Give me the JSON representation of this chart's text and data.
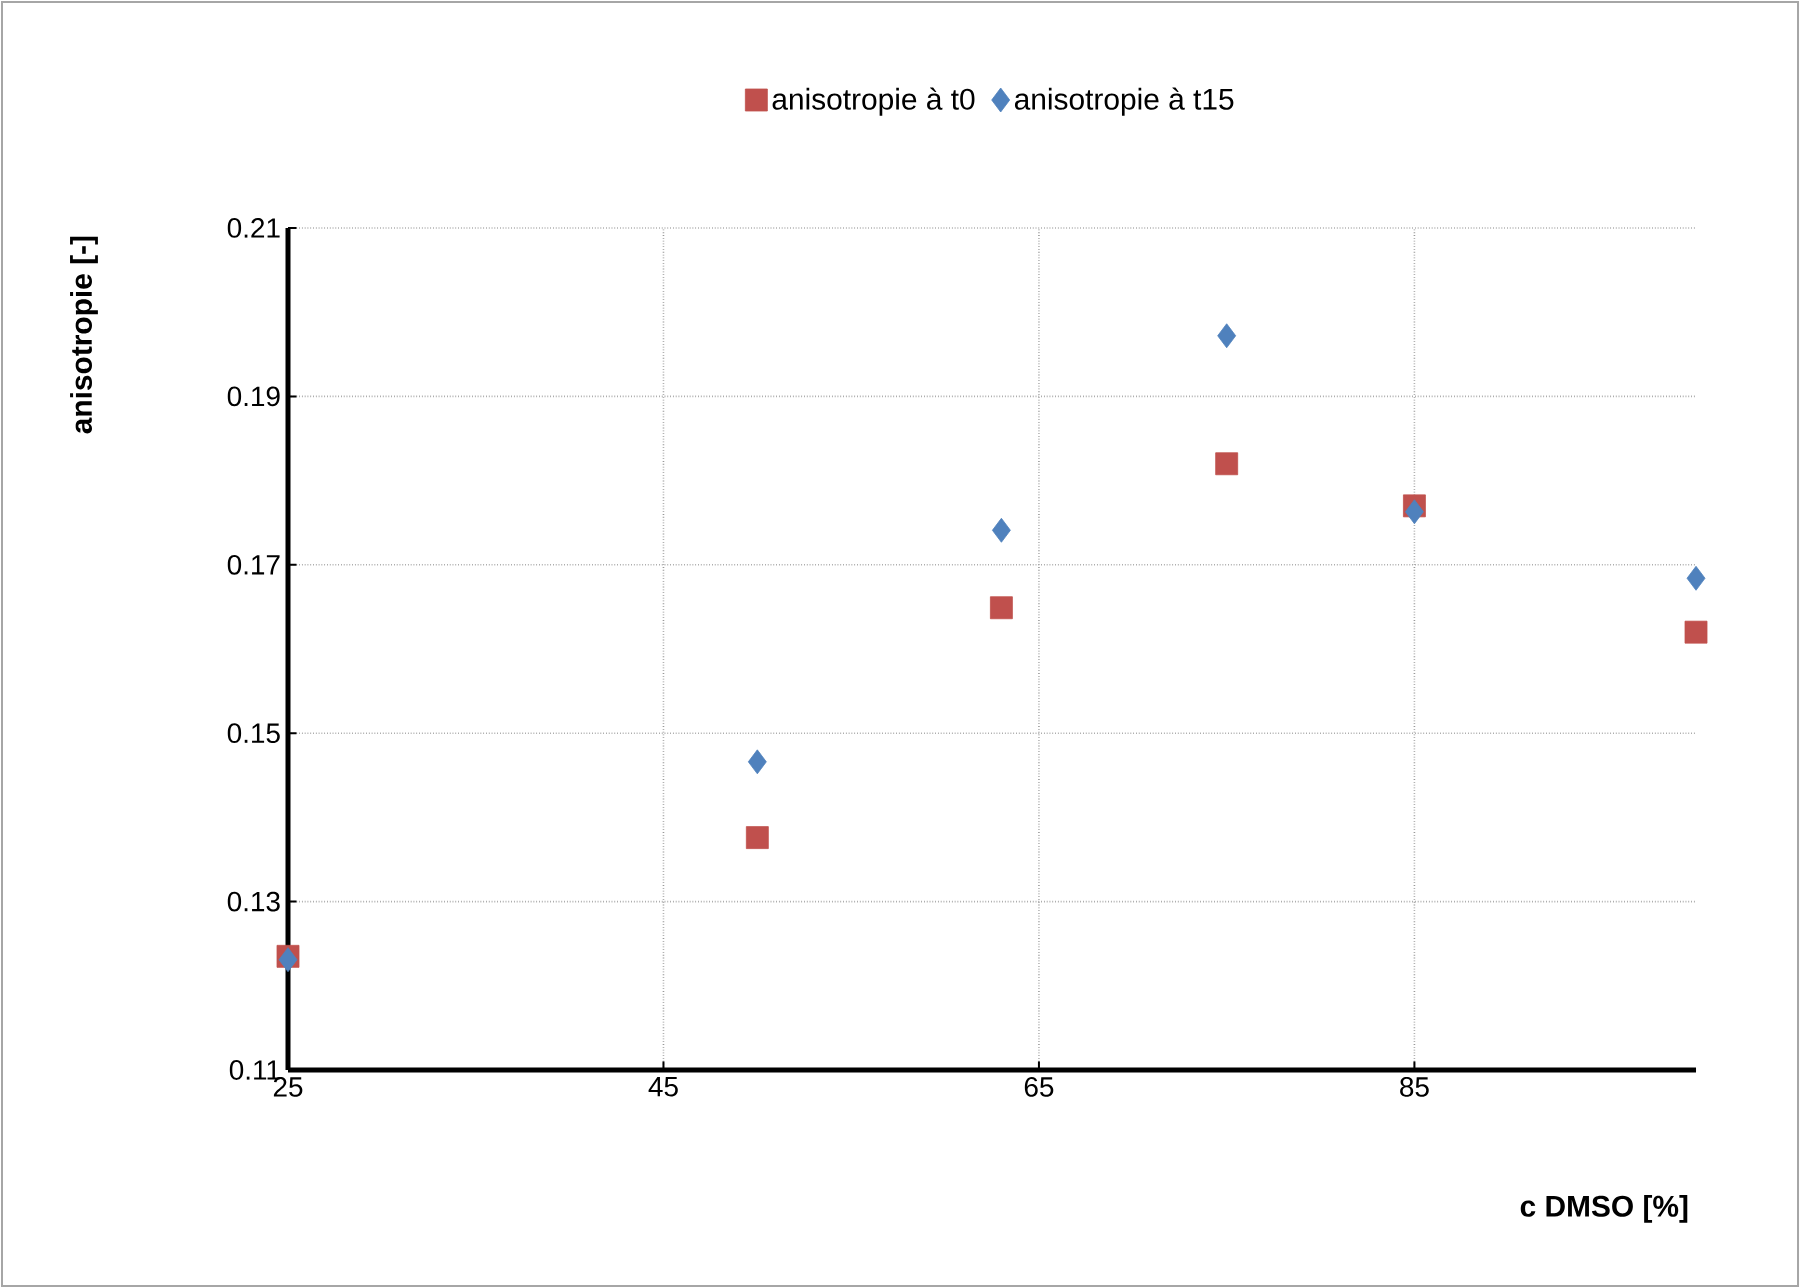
{
  "chart_data": {
    "type": "scatter",
    "xlabel": "c DMSO [%]",
    "ylabel": "anisotropie [-]",
    "xlim": [
      25,
      100
    ],
    "xticks": [
      25,
      45,
      65,
      85
    ],
    "ylim": [
      0.11,
      0.21
    ],
    "yticks": [
      0.11,
      0.13,
      0.15,
      0.17,
      0.19,
      0.21
    ],
    "grid": true,
    "legend": "top",
    "series": [
      {
        "name": "anisotropie à t0",
        "color": "#c0504d",
        "marker": "square",
        "x": [
          25,
          50,
          63,
          75,
          85,
          100
        ],
        "values": [
          0.1235,
          0.1376,
          0.1649,
          0.182,
          0.177,
          0.162
        ]
      },
      {
        "name": "anisotropie à t15",
        "color": "#4f81bd",
        "marker": "diamond",
        "x": [
          25,
          50,
          63,
          75,
          85,
          100
        ],
        "values": [
          0.1231,
          0.1466,
          0.1741,
          0.1972,
          0.1763,
          0.1684
        ]
      }
    ]
  }
}
